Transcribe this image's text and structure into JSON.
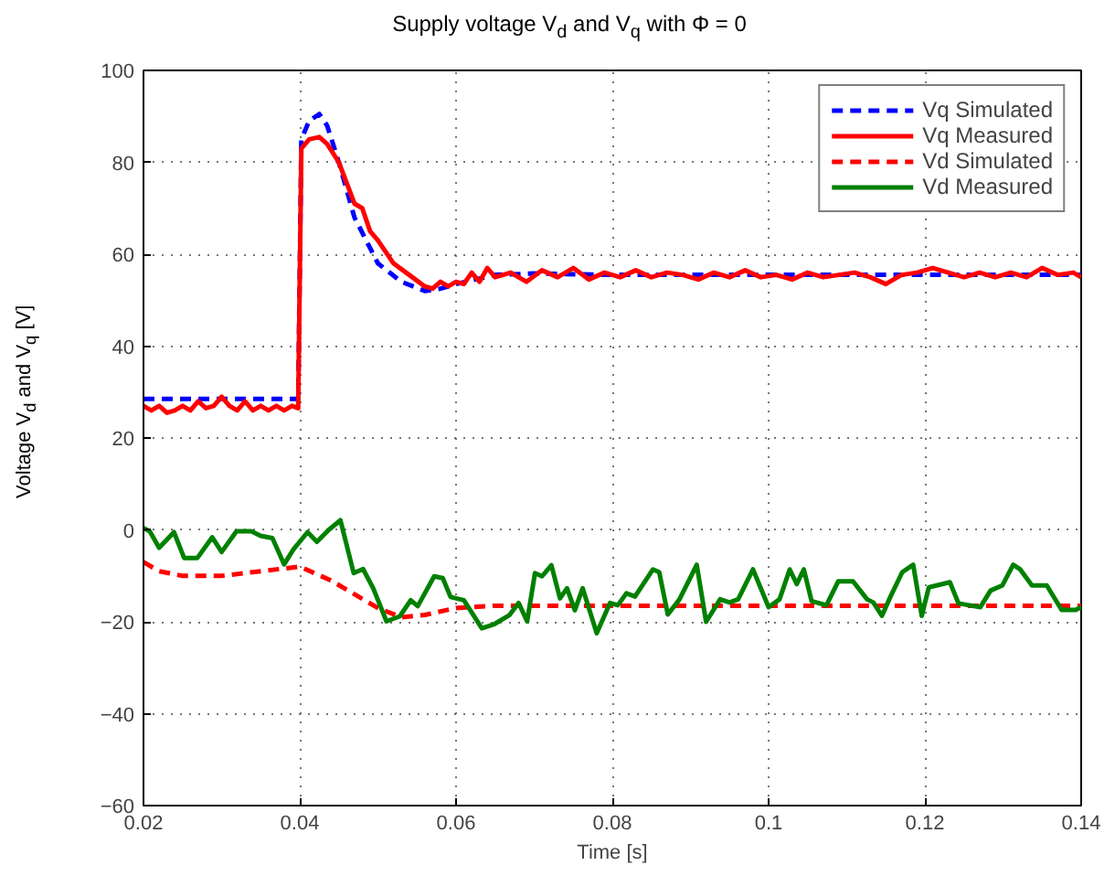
{
  "chart_data": {
    "type": "line",
    "title": "Supply voltage V$_{d}$ and V$_{q}$ with Φ = 0",
    "xlabel": "Time [s]",
    "ylabel": "Voltage V$_{d}$ and V$_{q}$ [V]",
    "xlim": [
      0.02,
      0.14
    ],
    "ylim": [
      -60,
      100
    ],
    "xticks": [
      0.02,
      0.04,
      0.06,
      0.08,
      0.1,
      0.12,
      0.14
    ],
    "yticks": [
      {
        "value": -60,
        "label": "−60"
      },
      {
        "value": -40,
        "label": "−40"
      },
      {
        "value": -20,
        "label": "−20"
      },
      0,
      20,
      40,
      60,
      80,
      100
    ],
    "grid": true,
    "legend": "top right",
    "series": [
      {
        "name": "Vq Simulated",
        "color": "#0000ff",
        "line_style": "dashed",
        "x": [
          0.02,
          0.03,
          0.0398,
          0.0402,
          0.0412,
          0.0425,
          0.0435,
          0.045,
          0.047,
          0.05,
          0.053,
          0.056,
          0.058,
          0.06,
          0.065,
          0.07,
          0.08,
          0.1,
          0.12,
          0.14
        ],
        "values": [
          28.5,
          28.5,
          28.5,
          85,
          89,
          90.5,
          88,
          80,
          68,
          58,
          54,
          52,
          52.5,
          53.5,
          55.5,
          55.8,
          55.5,
          55.5,
          55.5,
          55.5
        ]
      },
      {
        "name": "Vq Measured",
        "color": "#ff0000",
        "line_style": "solid",
        "x": [
          0.02,
          0.021,
          0.022,
          0.023,
          0.024,
          0.025,
          0.026,
          0.027,
          0.028,
          0.029,
          0.03,
          0.031,
          0.032,
          0.033,
          0.034,
          0.035,
          0.036,
          0.037,
          0.038,
          0.039,
          0.0398,
          0.0402,
          0.0412,
          0.0425,
          0.0435,
          0.045,
          0.047,
          0.048,
          0.049,
          0.05,
          0.052,
          0.054,
          0.056,
          0.057,
          0.058,
          0.059,
          0.06,
          0.061,
          0.062,
          0.063,
          0.064,
          0.065,
          0.067,
          0.069,
          0.071,
          0.073,
          0.075,
          0.077,
          0.079,
          0.081,
          0.083,
          0.085,
          0.087,
          0.089,
          0.091,
          0.093,
          0.095,
          0.097,
          0.099,
          0.101,
          0.103,
          0.105,
          0.107,
          0.109,
          0.111,
          0.113,
          0.115,
          0.117,
          0.119,
          0.121,
          0.123,
          0.125,
          0.127,
          0.129,
          0.131,
          0.133,
          0.135,
          0.137,
          0.139,
          0.14
        ],
        "values": [
          27,
          26,
          27,
          25.5,
          26,
          27,
          26,
          28,
          26.5,
          27,
          29,
          27,
          26,
          28,
          26,
          27,
          26,
          27,
          26,
          27,
          26.5,
          83,
          85,
          85.5,
          84,
          80,
          71,
          70,
          65,
          63,
          58,
          55.5,
          53,
          52.5,
          54,
          53,
          54,
          53.5,
          56,
          54,
          57,
          55,
          56,
          54,
          56.5,
          55,
          57,
          54.5,
          56,
          55,
          56.5,
          55,
          56,
          55.5,
          54.5,
          56,
          55,
          56.5,
          55,
          55.5,
          54.5,
          56,
          55,
          55.5,
          56,
          55,
          53.5,
          55.5,
          56,
          57,
          56,
          55,
          56,
          55,
          56,
          55,
          57,
          55.5,
          56,
          55
        ]
      },
      {
        "name": "Vd Simulated",
        "color": "#ff0000",
        "line_style": "dashed",
        "x": [
          0.02,
          0.022,
          0.025,
          0.03,
          0.035,
          0.04,
          0.042,
          0.044,
          0.046,
          0.048,
          0.05,
          0.053,
          0.056,
          0.06,
          0.065,
          0.07,
          0.08,
          0.1,
          0.12,
          0.14
        ],
        "values": [
          -7,
          -9,
          -10,
          -10,
          -9,
          -8,
          -9.5,
          -11,
          -13,
          -15,
          -17,
          -19,
          -18.5,
          -17,
          -16.5,
          -16.5,
          -16.5,
          -16.5,
          -16.5,
          -16.5
        ]
      },
      {
        "name": "Vd Measured",
        "color": "#008000",
        "line_style": "solid",
        "x": [
          0.02,
          0.0208,
          0.022,
          0.0239,
          0.0252,
          0.0269,
          0.0288,
          0.03,
          0.0319,
          0.0338,
          0.035,
          0.0365,
          0.038,
          0.0392,
          0.041,
          0.0422,
          0.0437,
          0.0452,
          0.0469,
          0.0481,
          0.0494,
          0.0511,
          0.0528,
          0.0542,
          0.0551,
          0.0572,
          0.0583,
          0.0593,
          0.061,
          0.0633,
          0.0649,
          0.0668,
          0.068,
          0.0691,
          0.0701,
          0.071,
          0.0722,
          0.0733,
          0.0742,
          0.0752,
          0.0762,
          0.078,
          0.0797,
          0.0807,
          0.0818,
          0.0829,
          0.0852,
          0.086,
          0.0871,
          0.0886,
          0.0908,
          0.092,
          0.0938,
          0.095,
          0.0961,
          0.098,
          0.1,
          0.1014,
          0.1027,
          0.1036,
          0.1045,
          0.1055,
          0.1074,
          0.1089,
          0.1108,
          0.1126,
          0.1134,
          0.1145,
          0.1156,
          0.1171,
          0.1185,
          0.1196,
          0.1205,
          0.1232,
          0.1243,
          0.1271,
          0.1284,
          0.1299,
          0.1313,
          0.1322,
          0.1337,
          0.1356,
          0.1375,
          0.1393,
          0.14
        ],
        "values": [
          0.4,
          -0.3,
          -3.9,
          -0.5,
          -6.1,
          -6.1,
          -1.6,
          -4.8,
          -0.3,
          -0.3,
          -1.3,
          -1.8,
          -7.5,
          -4.2,
          -0.5,
          -2.6,
          0,
          2.1,
          -9.4,
          -8.5,
          -12.7,
          -19.9,
          -18.8,
          -15.3,
          -16.6,
          -10.1,
          -10.5,
          -14.6,
          -15.3,
          -21.4,
          -20.5,
          -18.6,
          -15.9,
          -19.9,
          -9.4,
          -10.1,
          -7.7,
          -14.9,
          -12.7,
          -17.5,
          -12.7,
          -22.5,
          -15.9,
          -16.4,
          -13.8,
          -14.5,
          -8.6,
          -9.2,
          -18.4,
          -15.1,
          -7.6,
          -20,
          -15.1,
          -15.8,
          -15.1,
          -8.6,
          -16.8,
          -15.1,
          -8.6,
          -11.8,
          -8.6,
          -15.5,
          -16.4,
          -11.2,
          -11.2,
          -15.1,
          -15.8,
          -18.7,
          -14.5,
          -9.2,
          -7.6,
          -18.7,
          -12.5,
          -11.4,
          -16,
          -16.8,
          -13.2,
          -12.1,
          -7.6,
          -8.6,
          -12.1,
          -12.1,
          -17.4,
          -17.4,
          -16.8
        ]
      }
    ]
  }
}
